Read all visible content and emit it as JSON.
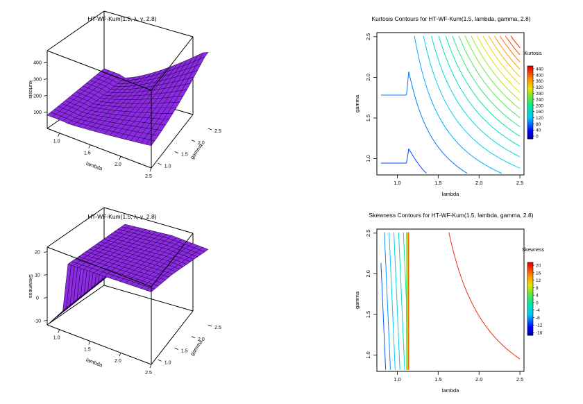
{
  "chart_data": [
    {
      "type": "surface",
      "title": "HT-WF-Kum(1.5, λ, γ, 2.8)",
      "xlabel": "lambda",
      "ylabel": "gamma",
      "zlabel": "kurtosis",
      "x_ticks": [
        "1.0",
        "1.5",
        "2.0",
        "2.5"
      ],
      "y_ticks": [
        "1.0",
        "1.5",
        "2.0",
        "2.5"
      ],
      "z_ticks": [
        "100",
        "200",
        "300",
        "400"
      ],
      "xlim": [
        0.8,
        2.5
      ],
      "ylim": [
        0.8,
        2.5
      ],
      "zlim": [
        0,
        470
      ],
      "color": "#8a2be2"
    },
    {
      "type": "contour",
      "title": "Kurtosis Contours for HT-WF-Kum(1.5, lambda, gamma, 2.8)",
      "xlabel": "lambda",
      "ylabel": "gamma",
      "x_ticks": [
        "1.0",
        "1.5",
        "2.0",
        "2.5"
      ],
      "y_ticks": [
        "1.0",
        "1.5",
        "2.0",
        "2.5"
      ],
      "xlim": [
        0.75,
        2.55
      ],
      "ylim": [
        0.8,
        2.55
      ],
      "legend_title": "Kurtosis",
      "legend_ticks": [
        "440",
        "400",
        "360",
        "320",
        "280",
        "240",
        "200",
        "160",
        "120",
        "80",
        "40",
        "0"
      ],
      "level_range": [
        0,
        460
      ],
      "legend": "right"
    },
    {
      "type": "surface",
      "title": "HT-WF-Kum(1.5, λ, γ, 2.8)",
      "xlabel": "lambda",
      "ylabel": "gamma",
      "zlabel": "Skewness",
      "x_ticks": [
        "1.0",
        "1.5",
        "2.0",
        "2.5"
      ],
      "y_ticks": [
        "1.0",
        "1.5",
        "2.0",
        "2.5"
      ],
      "z_ticks": [
        "-10",
        "0",
        "10",
        "20"
      ],
      "xlim": [
        0.8,
        2.5
      ],
      "ylim": [
        0.8,
        2.5
      ],
      "zlim": [
        -12,
        22
      ],
      "color": "#8a2be2"
    },
    {
      "type": "contour",
      "title": "Skewness Contours for HT-WF-Kum(1.5, lambda, gamma, 2.8)",
      "xlabel": "lambda",
      "ylabel": "gamma",
      "x_ticks": [
        "1.0",
        "1.5",
        "2.0",
        "2.5"
      ],
      "y_ticks": [
        "1.0",
        "1.5",
        "2.0",
        "2.5"
      ],
      "xlim": [
        0.75,
        2.55
      ],
      "ylim": [
        0.8,
        2.55
      ],
      "legend_title": "Skewness",
      "legend_ticks": [
        "20",
        "16",
        "12",
        "8",
        "4",
        "0",
        "-4",
        "-8",
        "-12",
        "-16"
      ],
      "level_range": [
        -18,
        22
      ],
      "legend": "right"
    }
  ]
}
